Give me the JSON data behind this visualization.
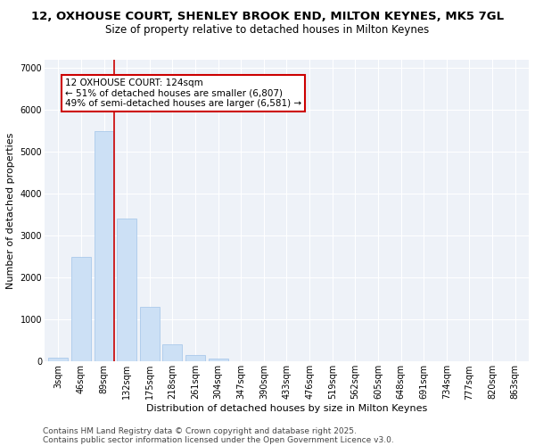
{
  "title_line1": "12, OXHOUSE COURT, SHENLEY BROOK END, MILTON KEYNES, MK5 7GL",
  "title_line2": "Size of property relative to detached houses in Milton Keynes",
  "xlabel": "Distribution of detached houses by size in Milton Keynes",
  "ylabel": "Number of detached properties",
  "categories": [
    "3sqm",
    "46sqm",
    "89sqm",
    "132sqm",
    "175sqm",
    "218sqm",
    "261sqm",
    "304sqm",
    "347sqm",
    "390sqm",
    "433sqm",
    "476sqm",
    "519sqm",
    "562sqm",
    "605sqm",
    "648sqm",
    "691sqm",
    "734sqm",
    "777sqm",
    "820sqm",
    "863sqm"
  ],
  "values": [
    100,
    2500,
    5500,
    3400,
    1300,
    400,
    150,
    75,
    10,
    2,
    1,
    0,
    0,
    0,
    0,
    0,
    0,
    0,
    0,
    0,
    0
  ],
  "bar_color": "#cce0f5",
  "bar_edge_color": "#a0c4e8",
  "vline_color": "#cc0000",
  "annotation_text": "12 OXHOUSE COURT: 124sqm\n← 51% of detached houses are smaller (6,807)\n49% of semi-detached houses are larger (6,581) →",
  "annotation_box_color": "#cc0000",
  "ylim": [
    0,
    7200
  ],
  "yticks": [
    0,
    1000,
    2000,
    3000,
    4000,
    5000,
    6000,
    7000
  ],
  "bg_color": "#eef2f8",
  "footer_line1": "Contains HM Land Registry data © Crown copyright and database right 2025.",
  "footer_line2": "Contains public sector information licensed under the Open Government Licence v3.0.",
  "title_fontsize": 9.5,
  "subtitle_fontsize": 8.5,
  "axis_label_fontsize": 8,
  "tick_fontsize": 7,
  "annotation_fontsize": 7.5,
  "footer_fontsize": 6.5
}
